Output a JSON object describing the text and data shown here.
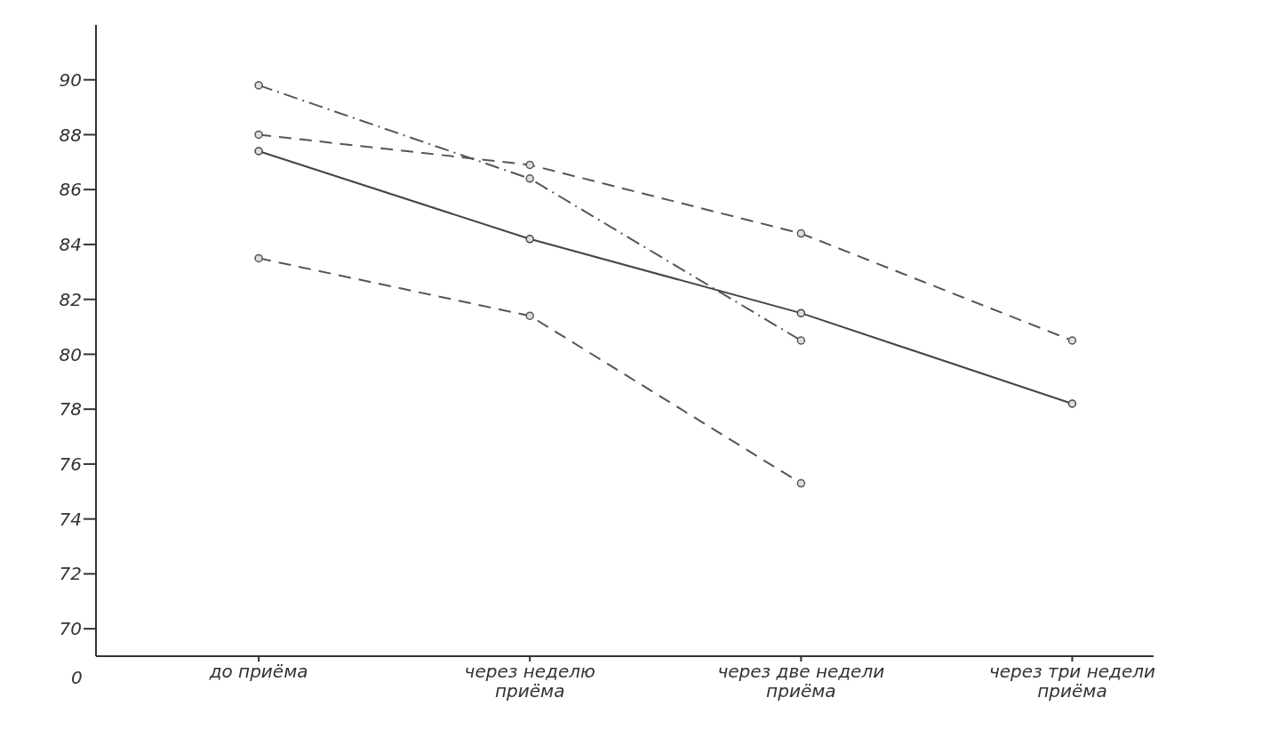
{
  "chart_data": {
    "type": "line",
    "categories": [
      "до приёма",
      "через неделю приёма",
      "через две недели приёма",
      "через три недели приёма"
    ],
    "series": [
      {
        "color": "#555555",
        "line_style": "dotted",
        "values": [
          89.8,
          86.4,
          80.5,
          null
        ]
      },
      {
        "color": "#555555",
        "line_style": "dashed",
        "values": [
          88.0,
          86.9,
          84.4,
          80.5
        ]
      },
      {
        "color": "#444444",
        "line_style": "solid",
        "values": [
          87.4,
          84.2,
          81.5,
          78.2
        ]
      },
      {
        "color": "#555555",
        "line_style": "dashed",
        "values": [
          83.5,
          81.4,
          75.3,
          null
        ]
      }
    ],
    "ylim": [
      69,
      92
    ],
    "yticks": [
      70,
      72,
      74,
      76,
      78,
      80,
      82,
      84,
      86,
      88,
      90
    ],
    "grid": false,
    "legend": false,
    "marker": "circle",
    "annotations": [
      "0"
    ]
  }
}
